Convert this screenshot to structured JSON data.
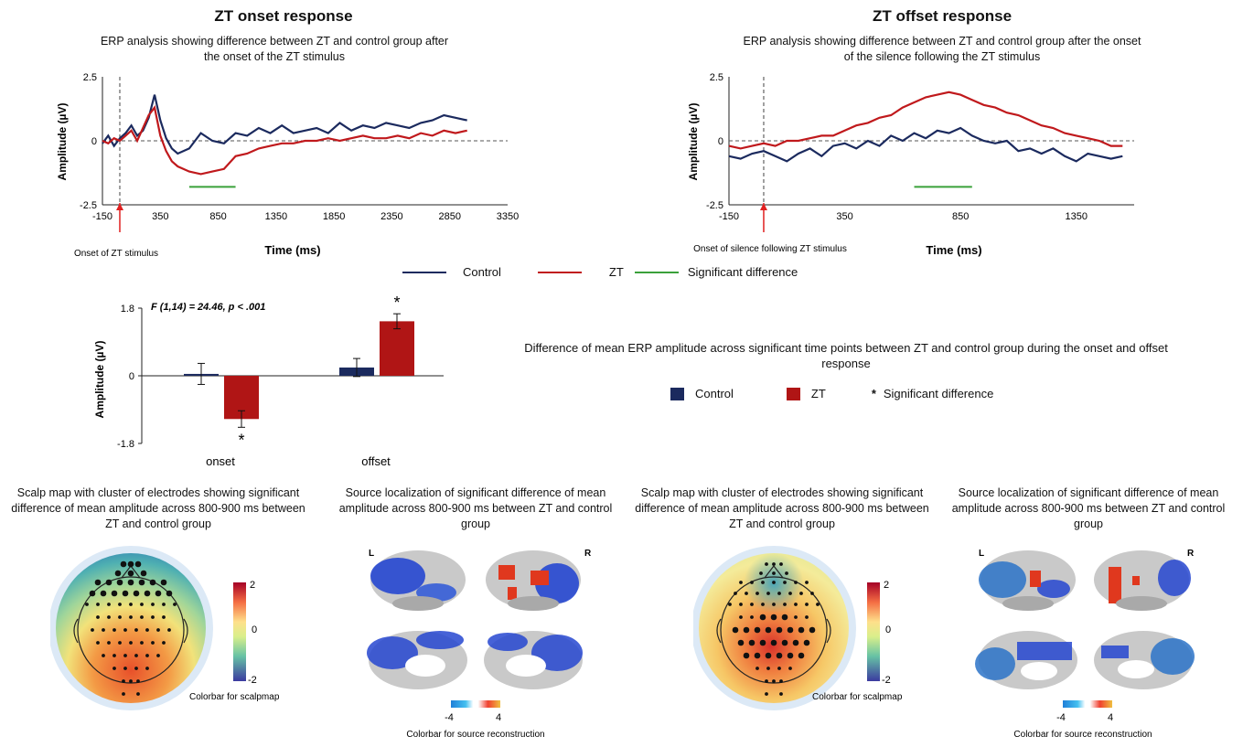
{
  "colors": {
    "control": "#1b2a5e",
    "zt": "#c0191c",
    "significant": "#3aa13a",
    "marker": "#e02020"
  },
  "onset_panel": {
    "title": "ZT onset response",
    "subtitle": "ERP analysis showing difference between ZT and control group after the onset of the ZT stimulus",
    "marker_label": "Onset of ZT stimulus"
  },
  "offset_panel": {
    "title": "ZT offset response",
    "subtitle": "ERP analysis showing difference between ZT and control group after the onset of the silence following the ZT stimulus",
    "marker_label": "Onset of silence following ZT stimulus"
  },
  "erp_legend": {
    "control": "Control",
    "zt": "ZT",
    "significant": "Significant difference"
  },
  "bar_panel": {
    "annotation": "F (1,14) = 24.46, p < .001",
    "description": "Difference of mean ERP amplitude across significant time points between ZT and control group during the onset and offset response",
    "legend": {
      "control": "Control",
      "zt": "ZT",
      "significant": "Significant difference"
    },
    "star": "*"
  },
  "scalp_onset": {
    "caption": "Scalp map with cluster of electrodes showing significant difference of mean amplitude across 800-900  ms between ZT and control group",
    "colorbar_label": "Colorbar for scalpmap",
    "colorbar_ticks": [
      "2",
      "0",
      "-2"
    ]
  },
  "source_onset": {
    "caption": "Source localization of significant difference of mean amplitude across 800-900 ms between ZT and control group",
    "left_label": "L",
    "right_label": "R",
    "colorbar_label": "Colorbar for source reconstruction",
    "colorbar_ticks": [
      "-4",
      "4"
    ]
  },
  "scalp_offset": {
    "caption": "Scalp map with cluster of electrodes showing significant difference of mean amplitude across 800-900  ms between ZT and control group",
    "colorbar_label": "Colorbar for scalpmap",
    "colorbar_ticks": [
      "2",
      "0",
      "-2"
    ]
  },
  "source_offset": {
    "caption": "Source localization of significant difference of mean amplitude across 800-900 ms between ZT and control group",
    "left_label": "L",
    "right_label": "R",
    "colorbar_label": "Colorbar for source reconstruction",
    "colorbar_ticks": [
      "-4",
      "4"
    ]
  },
  "chart_data": [
    {
      "type": "line",
      "title": "ZT onset response",
      "xlabel": "Time (ms)",
      "ylabel": "Amplitude (µV)",
      "xlim": [
        -150,
        3350
      ],
      "ylim": [
        -2.5,
        2.5
      ],
      "xticks": [
        "-150",
        "350",
        "850",
        "1350",
        "1850",
        "2350",
        "2850",
        "3350"
      ],
      "yticks": [
        "2.5",
        "0",
        "-2.5"
      ],
      "marker_x": 0,
      "significant_range": [
        600,
        1000
      ],
      "significant_y": -1.8,
      "series": [
        {
          "name": "Control",
          "x": [
            -150,
            -100,
            -50,
            0,
            50,
            100,
            150,
            200,
            250,
            300,
            350,
            400,
            450,
            500,
            600,
            700,
            800,
            900,
            1000,
            1100,
            1200,
            1300,
            1400,
            1500,
            1600,
            1700,
            1800,
            1900,
            2000,
            2100,
            2200,
            2300,
            2400,
            2500,
            2600,
            2700,
            2800,
            2900,
            3000
          ],
          "y": [
            -0.1,
            0.2,
            -0.2,
            0.1,
            0.3,
            0.6,
            0.2,
            0.4,
            0.9,
            1.8,
            0.8,
            0.1,
            -0.3,
            -0.5,
            -0.3,
            0.3,
            0.0,
            -0.1,
            0.3,
            0.2,
            0.5,
            0.3,
            0.6,
            0.3,
            0.4,
            0.5,
            0.3,
            0.7,
            0.4,
            0.6,
            0.5,
            0.7,
            0.6,
            0.5,
            0.7,
            0.8,
            1.0,
            0.9,
            0.8
          ]
        },
        {
          "name": "ZT",
          "x": [
            -150,
            -100,
            -50,
            0,
            50,
            100,
            150,
            200,
            250,
            300,
            350,
            400,
            450,
            500,
            600,
            700,
            800,
            900,
            1000,
            1100,
            1200,
            1300,
            1400,
            1500,
            1600,
            1700,
            1800,
            1900,
            2000,
            2100,
            2200,
            2300,
            2400,
            2500,
            2600,
            2700,
            2800,
            2900,
            3000
          ],
          "y": [
            0.0,
            -0.1,
            0.1,
            0.0,
            0.2,
            0.4,
            0.0,
            0.5,
            1.0,
            1.3,
            0.2,
            -0.4,
            -0.8,
            -1.0,
            -1.2,
            -1.3,
            -1.2,
            -1.1,
            -0.6,
            -0.5,
            -0.3,
            -0.2,
            -0.1,
            -0.1,
            0.0,
            0.0,
            0.1,
            0.0,
            0.1,
            0.2,
            0.1,
            0.1,
            0.2,
            0.1,
            0.3,
            0.2,
            0.4,
            0.3,
            0.4
          ]
        }
      ]
    },
    {
      "type": "line",
      "title": "ZT offset response",
      "xlabel": "Time (ms)",
      "ylabel": "Amplitude (µV)",
      "xlim": [
        -150,
        1600
      ],
      "ylim": [
        -2.5,
        2.5
      ],
      "xticks": [
        "-150",
        "350",
        "850",
        "1350"
      ],
      "yticks": [
        "2.5",
        "0",
        "-2.5"
      ],
      "marker_x": 0,
      "significant_range": [
        650,
        900
      ],
      "significant_y": -1.8,
      "series": [
        {
          "name": "Control",
          "x": [
            -150,
            -100,
            -50,
            0,
            50,
            100,
            150,
            200,
            250,
            300,
            350,
            400,
            450,
            500,
            550,
            600,
            650,
            700,
            750,
            800,
            850,
            900,
            950,
            1000,
            1050,
            1100,
            1150,
            1200,
            1250,
            1300,
            1350,
            1400,
            1450,
            1500,
            1550
          ],
          "y": [
            -0.6,
            -0.7,
            -0.5,
            -0.4,
            -0.6,
            -0.8,
            -0.5,
            -0.3,
            -0.6,
            -0.2,
            -0.1,
            -0.3,
            0.0,
            -0.2,
            0.2,
            0.0,
            0.3,
            0.1,
            0.4,
            0.3,
            0.5,
            0.2,
            0.0,
            -0.1,
            0.0,
            -0.4,
            -0.3,
            -0.5,
            -0.3,
            -0.6,
            -0.8,
            -0.5,
            -0.6,
            -0.7,
            -0.6
          ]
        },
        {
          "name": "ZT",
          "x": [
            -150,
            -100,
            -50,
            0,
            50,
            100,
            150,
            200,
            250,
            300,
            350,
            400,
            450,
            500,
            550,
            600,
            650,
            700,
            750,
            800,
            850,
            900,
            950,
            1000,
            1050,
            1100,
            1150,
            1200,
            1250,
            1300,
            1350,
            1400,
            1450,
            1500,
            1550
          ],
          "y": [
            -0.2,
            -0.3,
            -0.2,
            -0.1,
            -0.2,
            0.0,
            0.0,
            0.1,
            0.2,
            0.2,
            0.4,
            0.6,
            0.7,
            0.9,
            1.0,
            1.3,
            1.5,
            1.7,
            1.8,
            1.9,
            1.8,
            1.6,
            1.4,
            1.3,
            1.1,
            1.0,
            0.8,
            0.6,
            0.5,
            0.3,
            0.2,
            0.1,
            0.0,
            -0.2,
            -0.2
          ]
        }
      ]
    },
    {
      "type": "bar",
      "categories": [
        "onset",
        "offset"
      ],
      "ylabel": "Amplitude (µV)",
      "ylim": [
        -1.8,
        1.8
      ],
      "yticks": [
        "1.8",
        "0",
        "-1.8"
      ],
      "annotation": "F (1,14) = 24.46, p < .001",
      "significant": [
        "onset",
        "offset"
      ],
      "series": [
        {
          "name": "Control",
          "values": [
            0.05,
            0.22
          ],
          "errors": [
            0.28,
            0.24
          ]
        },
        {
          "name": "ZT",
          "values": [
            -1.15,
            1.45
          ],
          "errors": [
            0.22,
            0.2
          ]
        }
      ]
    }
  ]
}
